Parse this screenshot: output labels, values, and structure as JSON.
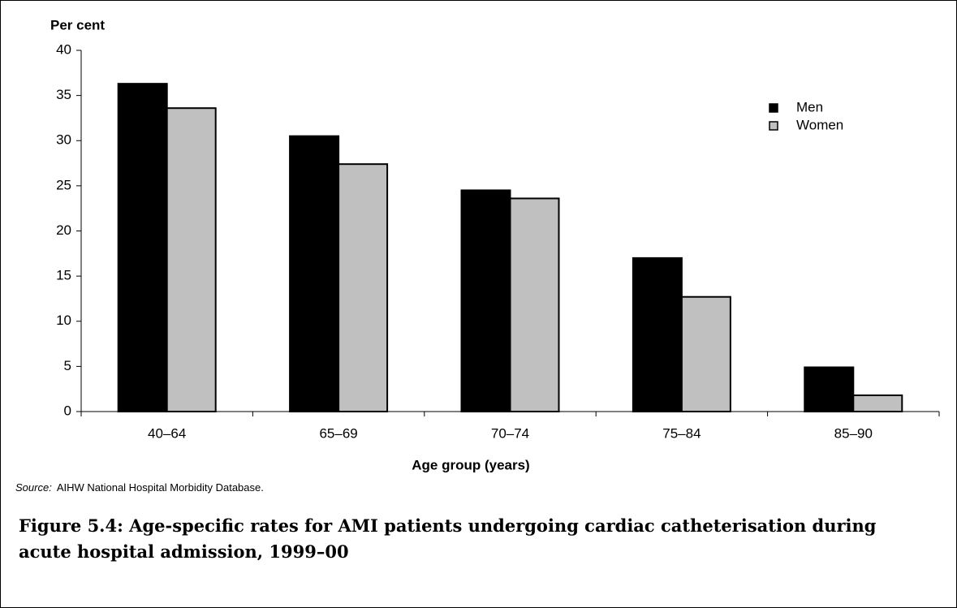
{
  "chart_data": {
    "type": "bar",
    "y_label": "Per cent",
    "x_label": "Age group (years)",
    "categories": [
      "40–64",
      "65–69",
      "70–74",
      "75–84",
      "85–90"
    ],
    "series": [
      {
        "name": "Men",
        "color": "#000000",
        "values": [
          36.3,
          30.5,
          24.5,
          17.0,
          4.9
        ]
      },
      {
        "name": "Women",
        "color": "#c0c0c0",
        "values": [
          33.6,
          27.4,
          23.6,
          12.7,
          1.8
        ]
      }
    ],
    "ylim": [
      0,
      40
    ],
    "yticks": [
      0,
      5,
      10,
      15,
      20,
      25,
      30,
      35,
      40
    ],
    "legend": "top-right",
    "source_label": "Source:",
    "source_text": "AIHW National Hospital Morbidity Database.",
    "caption": "Figure 5.4: Age-specific rates for AMI patients undergoing cardiac catheterisation during acute hospital admission, 1999–00"
  }
}
